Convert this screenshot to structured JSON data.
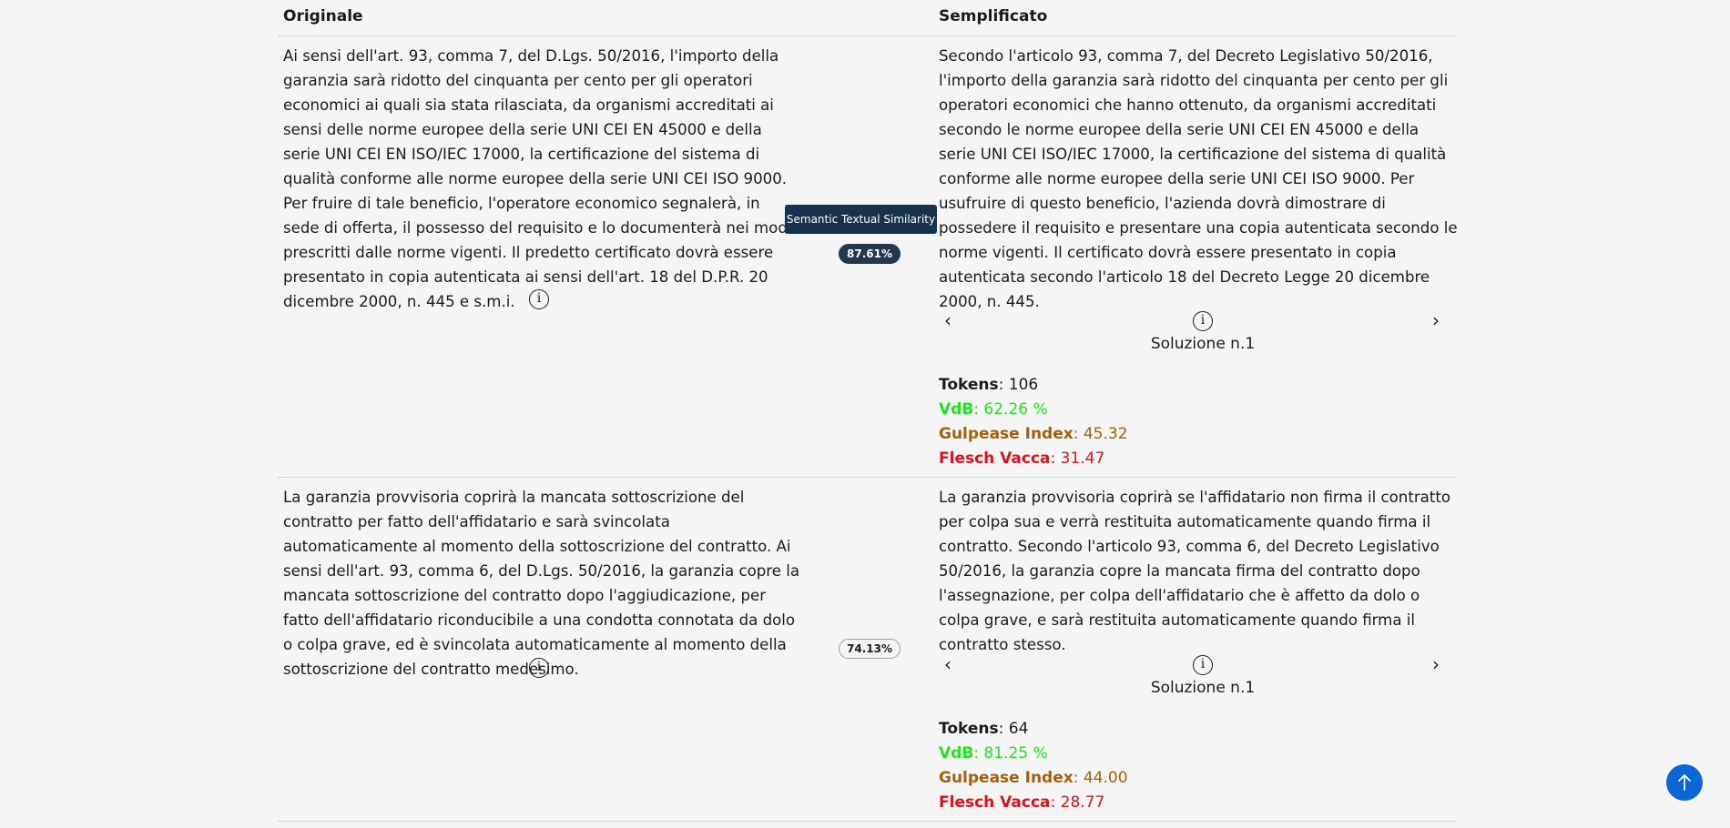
{
  "header": {
    "original": "Originale",
    "simplified": "Semplificato"
  },
  "rows": [
    {
      "original_text": "Ai sensi dell'art. 93, comma 7, del D.Lgs. 50/2016, l'importo della garanzia sarà ridotto del cinquanta per cento per gli operatori economici ai quali sia stata rilasciata, da organismi accreditati ai sensi delle norme europee della serie UNI CEI EN 45000 e della serie UNI CEI EN ISO/IEC 17000, la certificazione del sistema di qualità conforme alle norme europee della serie UNI CEI ISO 9000. Per fruire di tale beneficio, l'operatore economico segnalerà, in sede di offerta, il possesso del requisito e lo documenterà nei modi prescritti dalle norme vigenti. Il predetto certificato dovrà essere presentato in copia autenticata ai sensi dell'art. 18 del D.P.R. 20 dicembre 2000, n. 445 e s.m.i.",
      "similarity": "87.61%",
      "simplified_text": "Secondo l'articolo 93, comma 7, del Decreto Legislativo 50/2016, l'importo della garanzia sarà ridotto del cinquanta per cento per gli operatori economici che hanno ottenuto, da organismi accreditati secondo le norme europee della serie UNI CEI EN 45000 e della serie UNI CEI ISO/IEC 17000, la certificazione del sistema di qualità conforme alle norme europee della serie UNI CEI ISO 9000. Per usufruire di questo beneficio, l'azienda dovrà dimostrare di possedere il requisito e presentare una copia autenticata secondo le norme vigenti. Il certificato dovrà essere presentato in copia autenticata secondo l'articolo 18 del Decreto Legge 20 dicembre 2000, n. 445.",
      "solution_label": "Soluzione n.1",
      "metrics": {
        "tokens_label": "Tokens",
        "tokens": ": 106",
        "vdb_label": "VdB",
        "vdb": ": 62.26 %",
        "gulpease_label": "Gulpease Index",
        "gulpease": ": 45.32",
        "flesch_label": "Flesch Vacca",
        "flesch": ": 31.47"
      }
    },
    {
      "original_text": "La garanzia provvisoria coprirà la mancata sottoscrizione del contratto per fatto dell'affidatario e sarà svincolata automaticamente al momento della sottoscrizione del contratto. Ai sensi dell'art. 93, comma 6, del D.Lgs. 50/2016, la garanzia copre la mancata sottoscrizione del contratto dopo l'aggiudicazione, per fatto dell'affidatario riconducibile a una condotta connotata da dolo o colpa grave, ed è svincolata automaticamente al momento della sottoscrizione del contratto medesimo.",
      "similarity": "74.13%",
      "simplified_text": "La garanzia provvisoria coprirà se l'affidatario non firma il contratto per colpa sua e verrà restituita automaticamente quando firma il contratto. Secondo l'articolo 93, comma 6, del Decreto Legislativo 50/2016, la garanzia copre la mancata firma del contratto dopo l'assegnazione, per colpa dell'affidatario che è affetto da dolo o colpa grave, e sarà restituita automaticamente quando firma il contratto stesso.",
      "solution_label": "Soluzione n.1",
      "metrics": {
        "tokens_label": "Tokens",
        "tokens": ": 64",
        "vdb_label": "VdB",
        "vdb": ": 81.25 %",
        "gulpease_label": "Gulpease Index",
        "gulpease": ": 44.00",
        "flesch_label": "Flesch Vacca",
        "flesch": ": 28.77"
      }
    }
  ],
  "tooltip": "Semantic Textual Similarity",
  "icons": {
    "info": "info-circle-icon",
    "prev": "chevron-left-icon",
    "next": "chevron-right-icon",
    "back_to_top": "arrow-up-icon"
  },
  "colors": {
    "vdb": "#1fe41f",
    "gulpease": "#a3620a",
    "flesch": "#e0101a",
    "badge_dark": "#25374d",
    "fab": "#0a66d6"
  }
}
